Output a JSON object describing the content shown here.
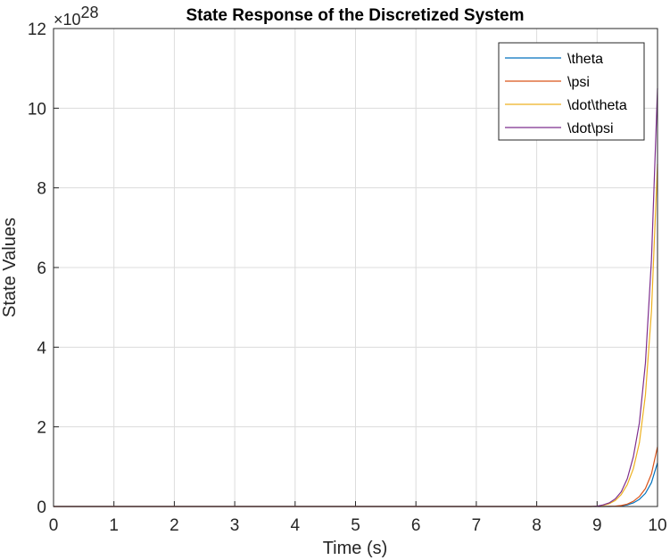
{
  "chart_data": {
    "type": "line",
    "title": "State Response of the Discretized System",
    "xlabel": "Time (s)",
    "ylabel": "State Values",
    "y_multiplier": {
      "base": "×10",
      "exponent": "28"
    },
    "xlim": [
      0,
      10
    ],
    "ylim": [
      0,
      12
    ],
    "x_ticks": [
      "0",
      "1",
      "2",
      "3",
      "4",
      "5",
      "6",
      "7",
      "8",
      "9",
      "10"
    ],
    "y_ticks": [
      "0",
      "2",
      "4",
      "6",
      "8",
      "10",
      "12"
    ],
    "grid": true,
    "legend_position": "top-right",
    "x": [
      0,
      8.9,
      9.0,
      9.1,
      9.2,
      9.3,
      9.4,
      9.5,
      9.6,
      9.7,
      9.8,
      9.9,
      10.0
    ],
    "series": [
      {
        "name": "\\theta",
        "color": "#0072BD",
        "values": [
          0,
          0,
          0,
          0,
          0,
          0.005,
          0.015,
          0.04,
          0.09,
          0.18,
          0.33,
          0.6,
          1.1
        ]
      },
      {
        "name": "\\psi",
        "color": "#D95319",
        "values": [
          0,
          0,
          0,
          0,
          0.005,
          0.01,
          0.025,
          0.06,
          0.13,
          0.25,
          0.45,
          0.82,
          1.5
        ]
      },
      {
        "name": "\\dot\\theta",
        "color": "#EDB120",
        "values": [
          0,
          0,
          0.01,
          0.03,
          0.07,
          0.15,
          0.3,
          0.55,
          0.95,
          1.6,
          2.8,
          4.9,
          8.6
        ]
      },
      {
        "name": "\\dot\\psi",
        "color": "#7E2F8E",
        "values": [
          0,
          0,
          0.01,
          0.04,
          0.09,
          0.19,
          0.37,
          0.7,
          1.25,
          2.1,
          3.6,
          6.2,
          10.5
        ]
      }
    ]
  }
}
